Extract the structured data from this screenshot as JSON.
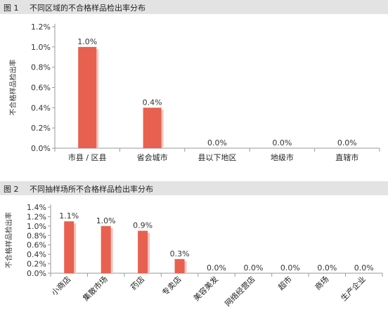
{
  "figures": [
    {
      "number": "图 1",
      "title": "不同区域的不合格样品检出率分布"
    },
    {
      "number": "图 2",
      "title": "不同抽样场所不合格样品检出率分布"
    }
  ],
  "chart_data": [
    {
      "type": "bar",
      "ylabel": "不合格样品检出率",
      "categories": [
        "市县 / 区县",
        "省会城市",
        "县以下地区",
        "地级市",
        "直辖市"
      ],
      "values": [
        1.0,
        0.4,
        0.0,
        0.0,
        0.0
      ],
      "value_labels": [
        "1.0%",
        "0.4%",
        "0.0%",
        "0.0%",
        "0.0%"
      ],
      "yticks": [
        "0.0%",
        "0.2%",
        "0.4%",
        "0.6%",
        "0.8%",
        "1.0%",
        "1.2%"
      ],
      "ylim": [
        0,
        1.2
      ],
      "grid": false,
      "bar_color": "#e8604f"
    },
    {
      "type": "bar",
      "ylabel": "不合格样品检出率",
      "categories": [
        "小商店",
        "集散市场",
        "药店",
        "专卖店",
        "美容美发",
        "网络经营店",
        "超市",
        "商场",
        "生产企业"
      ],
      "values": [
        1.1,
        1.0,
        0.9,
        0.3,
        0.0,
        0.0,
        0.0,
        0.0,
        0.0
      ],
      "value_labels": [
        "1.1%",
        "1.0%",
        "0.9%",
        "0.3%",
        "0.0%",
        "0.0%",
        "0.0%",
        "0.0%",
        "0.0%"
      ],
      "yticks": [
        "0.0%",
        "0.2%",
        "0.4%",
        "0.6%",
        "0.8%",
        "1.0%",
        "1.2%",
        "1.4%"
      ],
      "ylim": [
        0,
        1.4
      ],
      "grid": false,
      "bar_color": "#e8604f"
    }
  ]
}
